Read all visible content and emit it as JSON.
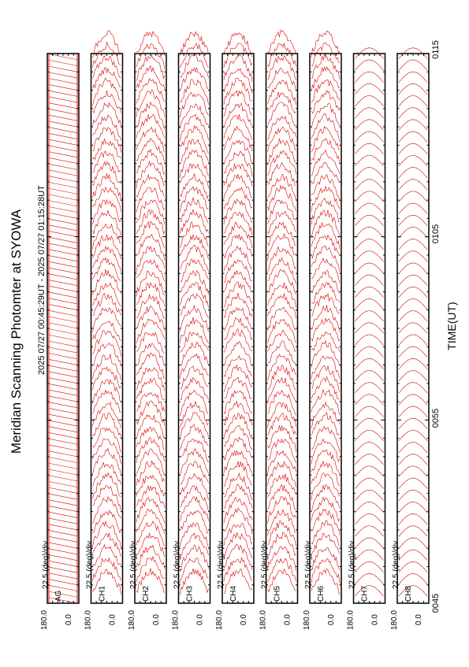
{
  "title": "Meridian Scanning Photomter at SYOWA",
  "time_range_label": "2025 07/27 00:45:29UT - 2025 07/27 01:15:28UT",
  "x_axis_label": "TIME(UT)",
  "x_ticks": [
    "0045",
    "0055",
    "0105",
    "0115"
  ],
  "scale_label": "22.5 (deg)/div",
  "y_ticks": [
    "180.0",
    "0.0"
  ],
  "colors": {
    "trace": "#e00000",
    "frame": "#000000",
    "background": "#ffffff"
  },
  "chart_data": {
    "type": "line",
    "orientation": "rotated-90-ccw",
    "title": "Meridian Scanning Photomter at SYOWA",
    "xlabel": "TIME(UT)",
    "x_range": [
      "00:45",
      "01:15"
    ],
    "x_ticks": [
      "0045",
      "0055",
      "0105",
      "0115"
    ],
    "y_range_deg": [
      0.0,
      180.0
    ],
    "scale": "22.5 (deg)/div",
    "panels": [
      {
        "channel": "AG",
        "trace_shape": "regular-sawtooth-scan"
      },
      {
        "channel": "CH1",
        "trace_shape": "scan-profiles"
      },
      {
        "channel": "CH2",
        "trace_shape": "scan-profiles"
      },
      {
        "channel": "CH3",
        "trace_shape": "scan-profiles"
      },
      {
        "channel": "CH4",
        "trace_shape": "scan-profiles"
      },
      {
        "channel": "CH5",
        "trace_shape": "scan-profiles"
      },
      {
        "channel": "CH6",
        "trace_shape": "scan-profiles"
      },
      {
        "channel": "CH7",
        "trace_shape": "scan-profiles"
      },
      {
        "channel": "CH8",
        "trace_shape": "scan-profiles"
      }
    ]
  }
}
